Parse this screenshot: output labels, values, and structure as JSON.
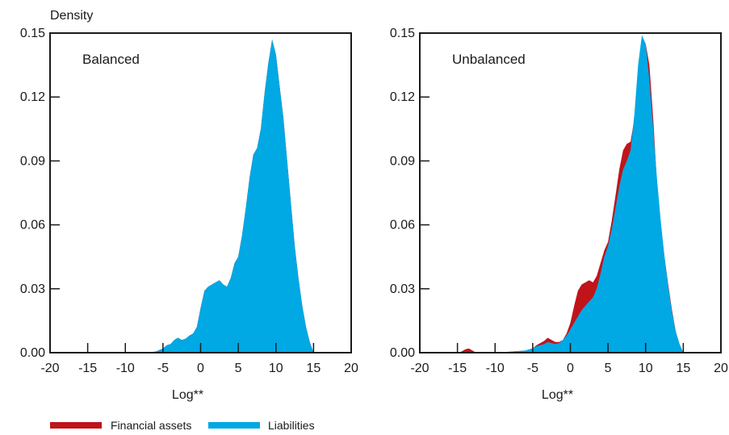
{
  "colors": {
    "financial_assets": "#c0141b",
    "liabilities": "#00a8e4",
    "axis": "#1a1a1a"
  },
  "chart_data": [
    {
      "type": "area",
      "title": "",
      "panel_label": "Balanced",
      "ylabel": "Density",
      "xlabel": "Log**",
      "xlim": [
        -20,
        20
      ],
      "ylim": [
        0,
        0.15
      ],
      "xticks": [
        "-20",
        "-15",
        "-10",
        "-5",
        "0",
        "5",
        "10",
        "15",
        "20"
      ],
      "yticks": [
        "0.00",
        "0.03",
        "0.06",
        "0.09",
        "0.12",
        "0.15"
      ],
      "series": [
        {
          "name": "Financial assets",
          "color": "#c0141b",
          "x": [
            -8,
            -6,
            -5,
            -4.5,
            -4,
            -3.5,
            -3,
            -2.5,
            -2,
            -1.5,
            -1,
            -0.5,
            0,
            0.5,
            1,
            1.5,
            2,
            2.5,
            3,
            3.5,
            4,
            4.5,
            5,
            5.5,
            6,
            6.5,
            7,
            7.5,
            8,
            8.5,
            9,
            9.5,
            10,
            10.5,
            11,
            11.5,
            12,
            12.5,
            13,
            13.5,
            14,
            14.5,
            15
          ],
          "y": [
            0,
            0.0005,
            0.002,
            0.0035,
            0.004,
            0.006,
            0.007,
            0.006,
            0.0065,
            0.008,
            0.009,
            0.012,
            0.021,
            0.029,
            0.031,
            0.032,
            0.033,
            0.034,
            0.032,
            0.031,
            0.035,
            0.042,
            0.045,
            0.055,
            0.068,
            0.082,
            0.093,
            0.096,
            0.105,
            0.122,
            0.136,
            0.147,
            0.14,
            0.125,
            0.11,
            0.09,
            0.07,
            0.05,
            0.035,
            0.022,
            0.012,
            0.005,
            0
          ]
        },
        {
          "name": "Liabilities",
          "color": "#00a8e4",
          "x": [
            -8,
            -6,
            -5,
            -4.5,
            -4,
            -3.5,
            -3,
            -2.5,
            -2,
            -1.5,
            -1,
            -0.5,
            0,
            0.5,
            1,
            1.5,
            2,
            2.5,
            3,
            3.5,
            4,
            4.5,
            5,
            5.5,
            6,
            6.5,
            7,
            7.5,
            8,
            8.5,
            9,
            9.5,
            10,
            10.5,
            11,
            11.5,
            12,
            12.5,
            13,
            13.5,
            14,
            14.5,
            15
          ],
          "y": [
            0,
            0.0005,
            0.002,
            0.0035,
            0.004,
            0.006,
            0.007,
            0.006,
            0.0065,
            0.008,
            0.009,
            0.012,
            0.021,
            0.029,
            0.031,
            0.032,
            0.033,
            0.034,
            0.032,
            0.031,
            0.035,
            0.042,
            0.045,
            0.055,
            0.068,
            0.082,
            0.093,
            0.096,
            0.105,
            0.122,
            0.136,
            0.147,
            0.14,
            0.125,
            0.11,
            0.09,
            0.07,
            0.05,
            0.035,
            0.022,
            0.012,
            0.005,
            0
          ]
        }
      ]
    },
    {
      "type": "area",
      "title": "",
      "panel_label": "Unbalanced",
      "ylabel": "",
      "xlabel": "Log**",
      "xlim": [
        -20,
        20
      ],
      "ylim": [
        0,
        0.15
      ],
      "xticks": [
        "-20",
        "-15",
        "-10",
        "-5",
        "0",
        "5",
        "10",
        "15",
        "20"
      ],
      "yticks": [
        "0.00",
        "0.03",
        "0.06",
        "0.09",
        "0.12",
        "0.15"
      ],
      "series": [
        {
          "name": "Financial assets",
          "color": "#c0141b",
          "x": [
            -20,
            -15,
            -14.5,
            -14,
            -13.5,
            -13,
            -12.5,
            -12,
            -10,
            -8,
            -6,
            -5,
            -4.5,
            -4,
            -3.5,
            -3,
            -2.5,
            -2,
            -1.5,
            -1,
            -0.5,
            0,
            0.5,
            1,
            1.5,
            2,
            2.5,
            3,
            3.5,
            4,
            4.5,
            5,
            5.5,
            6,
            6.5,
            7,
            7.5,
            8,
            8.5,
            9,
            9.5,
            10,
            10.5,
            11,
            11.5,
            12,
            12.5,
            13,
            13.5,
            14,
            14.5,
            15
          ],
          "y": [
            0,
            0,
            0.0005,
            0.0015,
            0.002,
            0.001,
            0,
            0,
            0,
            0.0005,
            0.001,
            0.002,
            0.0035,
            0.0045,
            0.0055,
            0.007,
            0.006,
            0.005,
            0.005,
            0.006,
            0.009,
            0.014,
            0.022,
            0.029,
            0.032,
            0.033,
            0.034,
            0.033,
            0.036,
            0.042,
            0.048,
            0.052,
            0.062,
            0.074,
            0.086,
            0.095,
            0.098,
            0.099,
            0.11,
            0.13,
            0.146,
            0.145,
            0.135,
            0.11,
            0.08,
            0.06,
            0.045,
            0.032,
            0.02,
            0.01,
            0.004,
            0
          ]
        },
        {
          "name": "Liabilities",
          "color": "#00a8e4",
          "x": [
            -20,
            -15,
            -14.5,
            -14,
            -13.5,
            -13,
            -12.5,
            -12,
            -10,
            -8,
            -6,
            -5,
            -4.5,
            -4,
            -3.5,
            -3,
            -2.5,
            -2,
            -1.5,
            -1,
            -0.5,
            0,
            0.5,
            1,
            1.5,
            2,
            2.5,
            3,
            3.5,
            4,
            4.5,
            5,
            5.5,
            6,
            6.5,
            7,
            7.5,
            8,
            8.5,
            9,
            9.5,
            10,
            10.5,
            11,
            11.5,
            12,
            12.5,
            13,
            13.5,
            14,
            14.5,
            15
          ],
          "y": [
            0,
            0,
            0,
            0,
            0,
            0,
            0,
            0,
            0,
            0.0005,
            0.001,
            0.002,
            0.003,
            0.0035,
            0.004,
            0.005,
            0.0045,
            0.004,
            0.0045,
            0.006,
            0.008,
            0.011,
            0.014,
            0.017,
            0.02,
            0.022,
            0.024,
            0.026,
            0.03,
            0.037,
            0.045,
            0.05,
            0.058,
            0.068,
            0.078,
            0.086,
            0.09,
            0.095,
            0.112,
            0.135,
            0.149,
            0.145,
            0.128,
            0.105,
            0.082,
            0.062,
            0.045,
            0.031,
            0.019,
            0.01,
            0.004,
            0
          ]
        }
      ]
    }
  ],
  "legend": [
    {
      "label": "Financial assets",
      "color": "#c0141b"
    },
    {
      "label": "Liabilities",
      "color": "#00a8e4"
    }
  ]
}
